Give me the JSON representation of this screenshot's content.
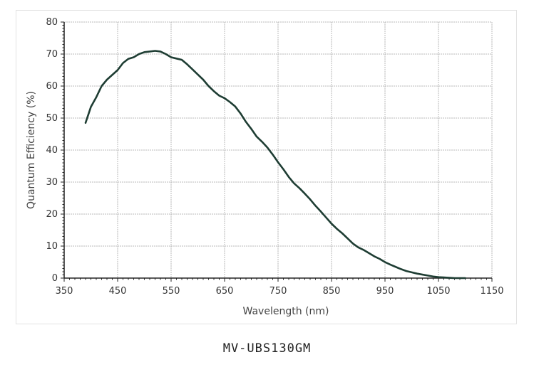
{
  "caption": "MV-UBS130GM",
  "chart_data": {
    "type": "line",
    "title": "",
    "xlabel": "Wavelength (nm)",
    "ylabel": "Quantum Efficiency (%)",
    "xlim": [
      350,
      1150
    ],
    "ylim": [
      0,
      80
    ],
    "xticks": [
      350,
      450,
      550,
      650,
      750,
      850,
      950,
      1050,
      1150
    ],
    "yticks": [
      0,
      10,
      20,
      30,
      40,
      50,
      60,
      70,
      80
    ],
    "grid": true,
    "line_color": "#1e3d33",
    "series": [
      {
        "x": [
          390,
          400,
          410,
          420,
          430,
          440,
          450,
          460,
          470,
          480,
          490,
          500,
          510,
          520,
          530,
          540,
          550,
          560,
          570,
          580,
          590,
          600,
          610,
          620,
          630,
          640,
          650,
          660,
          670,
          680,
          690,
          700,
          710,
          720,
          730,
          740,
          750,
          760,
          770,
          780,
          790,
          800,
          810,
          820,
          830,
          840,
          850,
          860,
          870,
          880,
          890,
          900,
          910,
          920,
          930,
          940,
          950,
          960,
          970,
          980,
          990,
          1000,
          1010,
          1020,
          1030,
          1040,
          1050,
          1060,
          1070,
          1080,
          1090,
          1100
        ],
        "values": [
          48.5,
          53.5,
          56.5,
          60,
          62,
          63.5,
          65,
          67.2,
          68.5,
          69,
          70,
          70.6,
          70.8,
          71,
          70.8,
          70,
          69,
          68.6,
          68.2,
          66.8,
          65.2,
          63.6,
          62,
          60,
          58.4,
          57,
          56.2,
          55,
          53.6,
          51.4,
          48.8,
          46.6,
          44.2,
          42.6,
          40.8,
          38.6,
          36.2,
          34,
          31.6,
          29.6,
          28.1,
          26.4,
          24.6,
          22.6,
          20.8,
          18.9,
          17,
          15.4,
          14,
          12.4,
          10.8,
          9.6,
          8.8,
          7.8,
          6.8,
          6,
          5,
          4.2,
          3.5,
          2.8,
          2.2,
          1.8,
          1.4,
          1.1,
          0.8,
          0.5,
          0.3,
          0.2,
          0.1,
          0,
          0,
          0
        ]
      }
    ]
  }
}
